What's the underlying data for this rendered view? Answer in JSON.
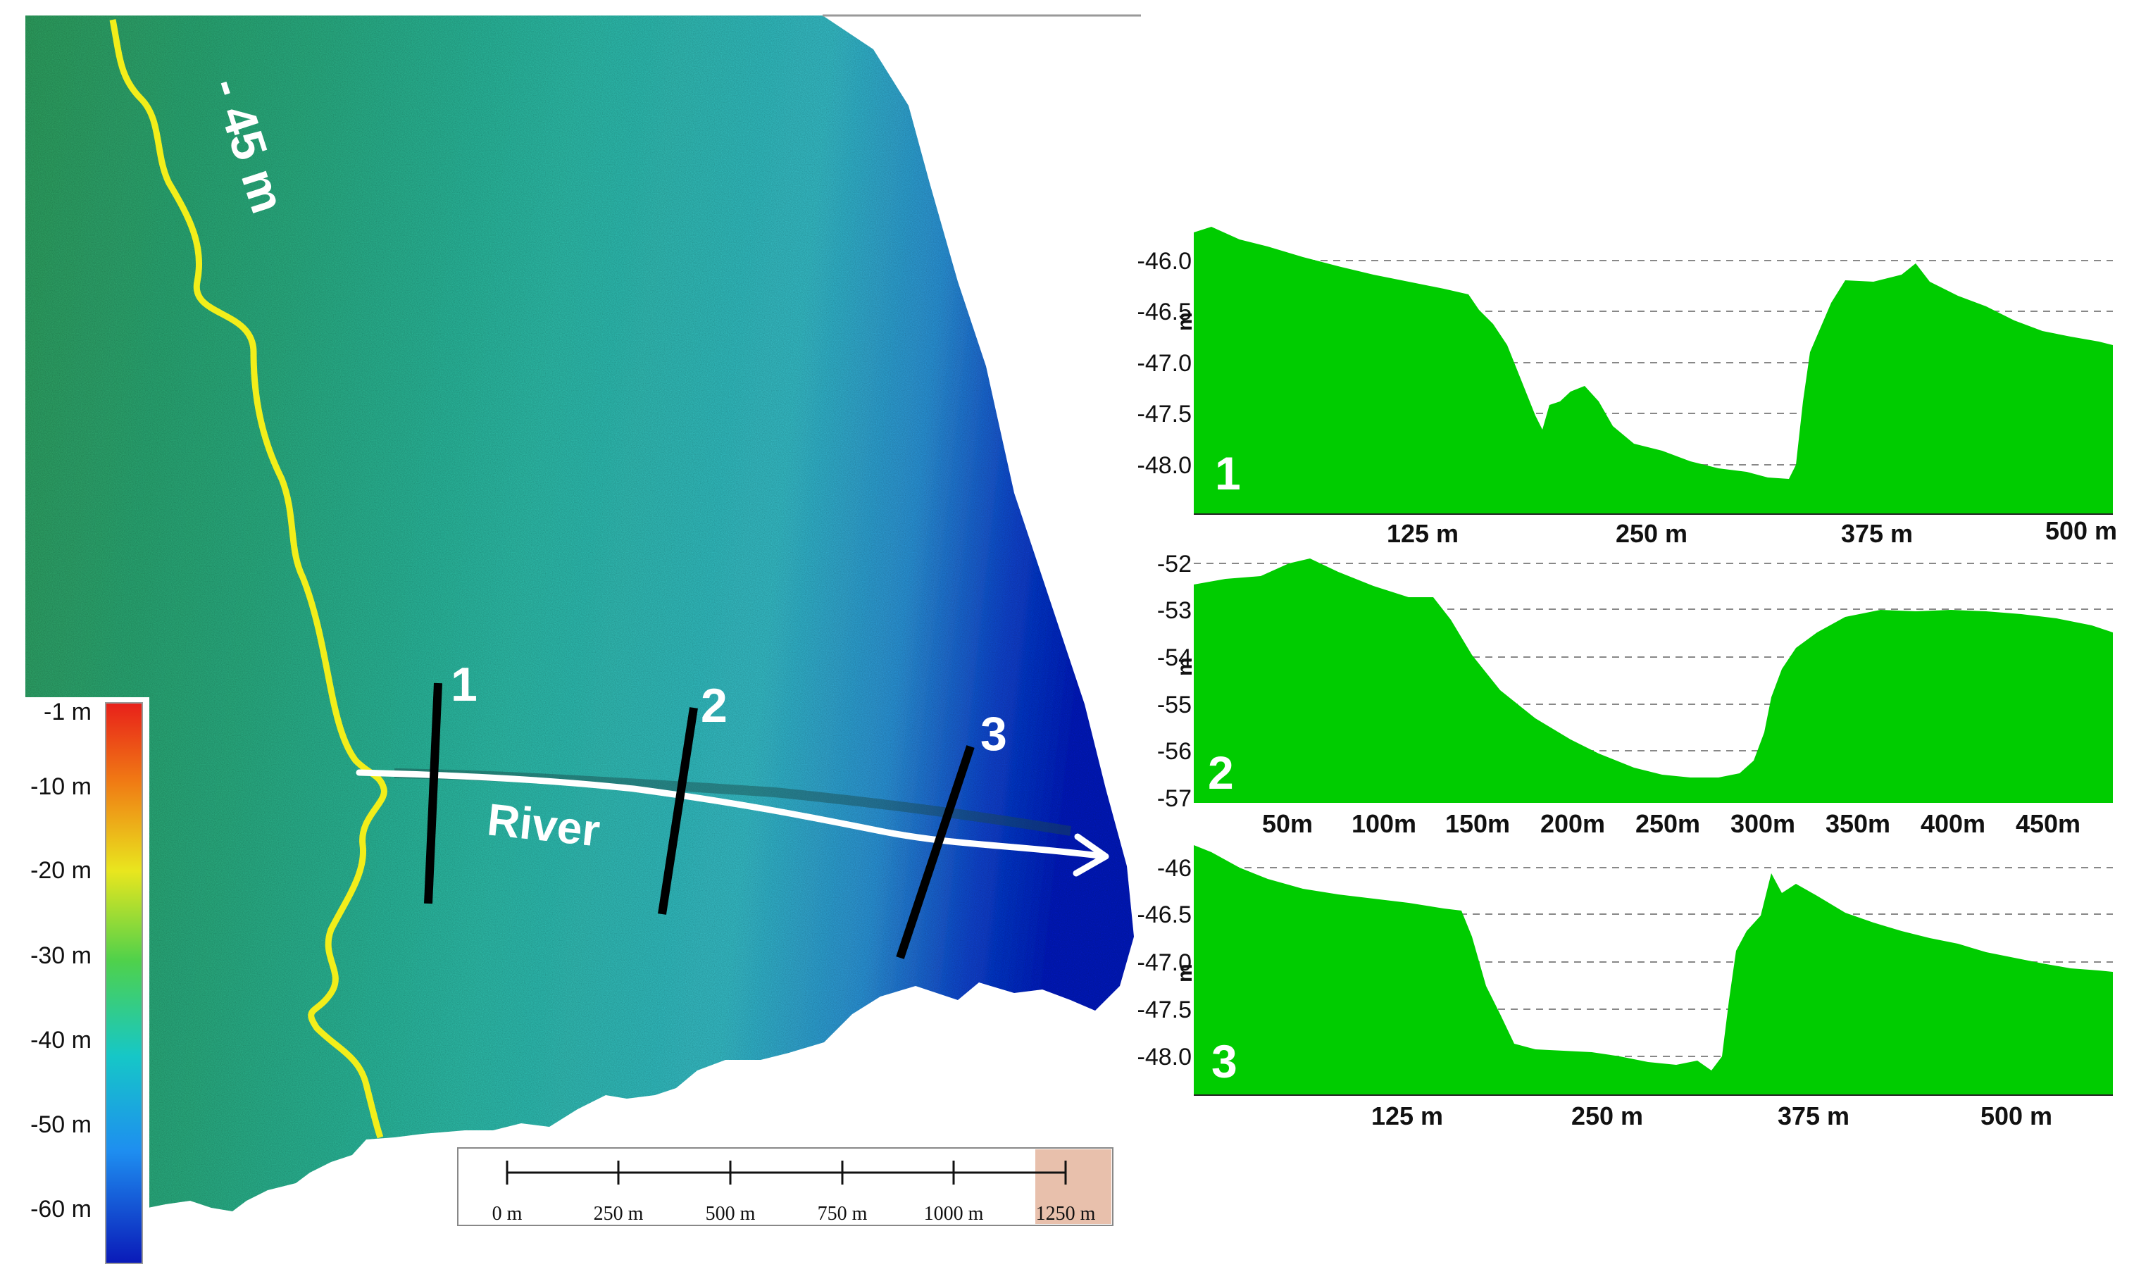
{
  "map": {
    "contour_label": "- 45 m",
    "river_label": "River",
    "profile_line_labels": [
      "1",
      "2",
      "3"
    ],
    "colors": {
      "contour": "#f2ee1a",
      "river_arrow": "#ffffff",
      "profile_lines": "#000000",
      "shallow_green": "#2f9a5c",
      "mid_teal": "#2fb3b0",
      "deep_blue": "#0b1fb8"
    }
  },
  "color_legend": {
    "labels": [
      "-1 m",
      "-10 m",
      "-20 m",
      "-30 m",
      "-40 m",
      "-50 m",
      "-60 m"
    ],
    "colors": [
      "#e8201a",
      "#f07a14",
      "#e9e61e",
      "#4fd14b",
      "#16c7c7",
      "#1e8ef0",
      "#0a1ab8"
    ]
  },
  "scale_bar": {
    "labels": [
      "0 m",
      "250 m",
      "500 m",
      "750 m",
      "1000 m",
      "1250 m"
    ]
  },
  "profiles": [
    {
      "number": "1",
      "y_unit": "m",
      "y_ticks": [
        "-46.0",
        "-46.5",
        "-47.0",
        "-47.5",
        "-48.0"
      ],
      "x_ticks": [
        "125 m",
        "250 m",
        "375 m",
        "500 m"
      ],
      "fill_color": "#00cc00"
    },
    {
      "number": "2",
      "y_unit": "m",
      "y_ticks": [
        "-52",
        "-53",
        "-54",
        "-55",
        "-56",
        "-57"
      ],
      "x_ticks": [
        "50m",
        "100m",
        "150m",
        "200m",
        "250m",
        "300m",
        "350m",
        "400m",
        "450m"
      ],
      "fill_color": "#00cc00"
    },
    {
      "number": "3",
      "y_unit": "m",
      "y_ticks": [
        "-46",
        "-46.5",
        "-47.0",
        "-47.5",
        "-48.0"
      ],
      "x_ticks": [
        "125 m",
        "250 m",
        "375 m",
        "500 m"
      ],
      "fill_color": "#00cc00"
    }
  ]
}
